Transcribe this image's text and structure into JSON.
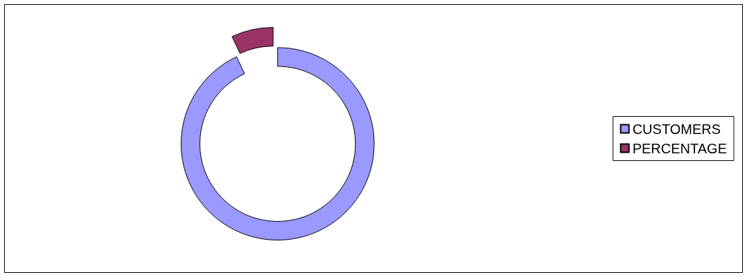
{
  "chart_data": {
    "type": "donut",
    "categories": [
      "CUSTOMERS",
      "PERCENTAGE"
    ],
    "values": [
      93,
      7
    ],
    "colors": [
      "#9999ff",
      "#993366"
    ],
    "legend": "right"
  }
}
